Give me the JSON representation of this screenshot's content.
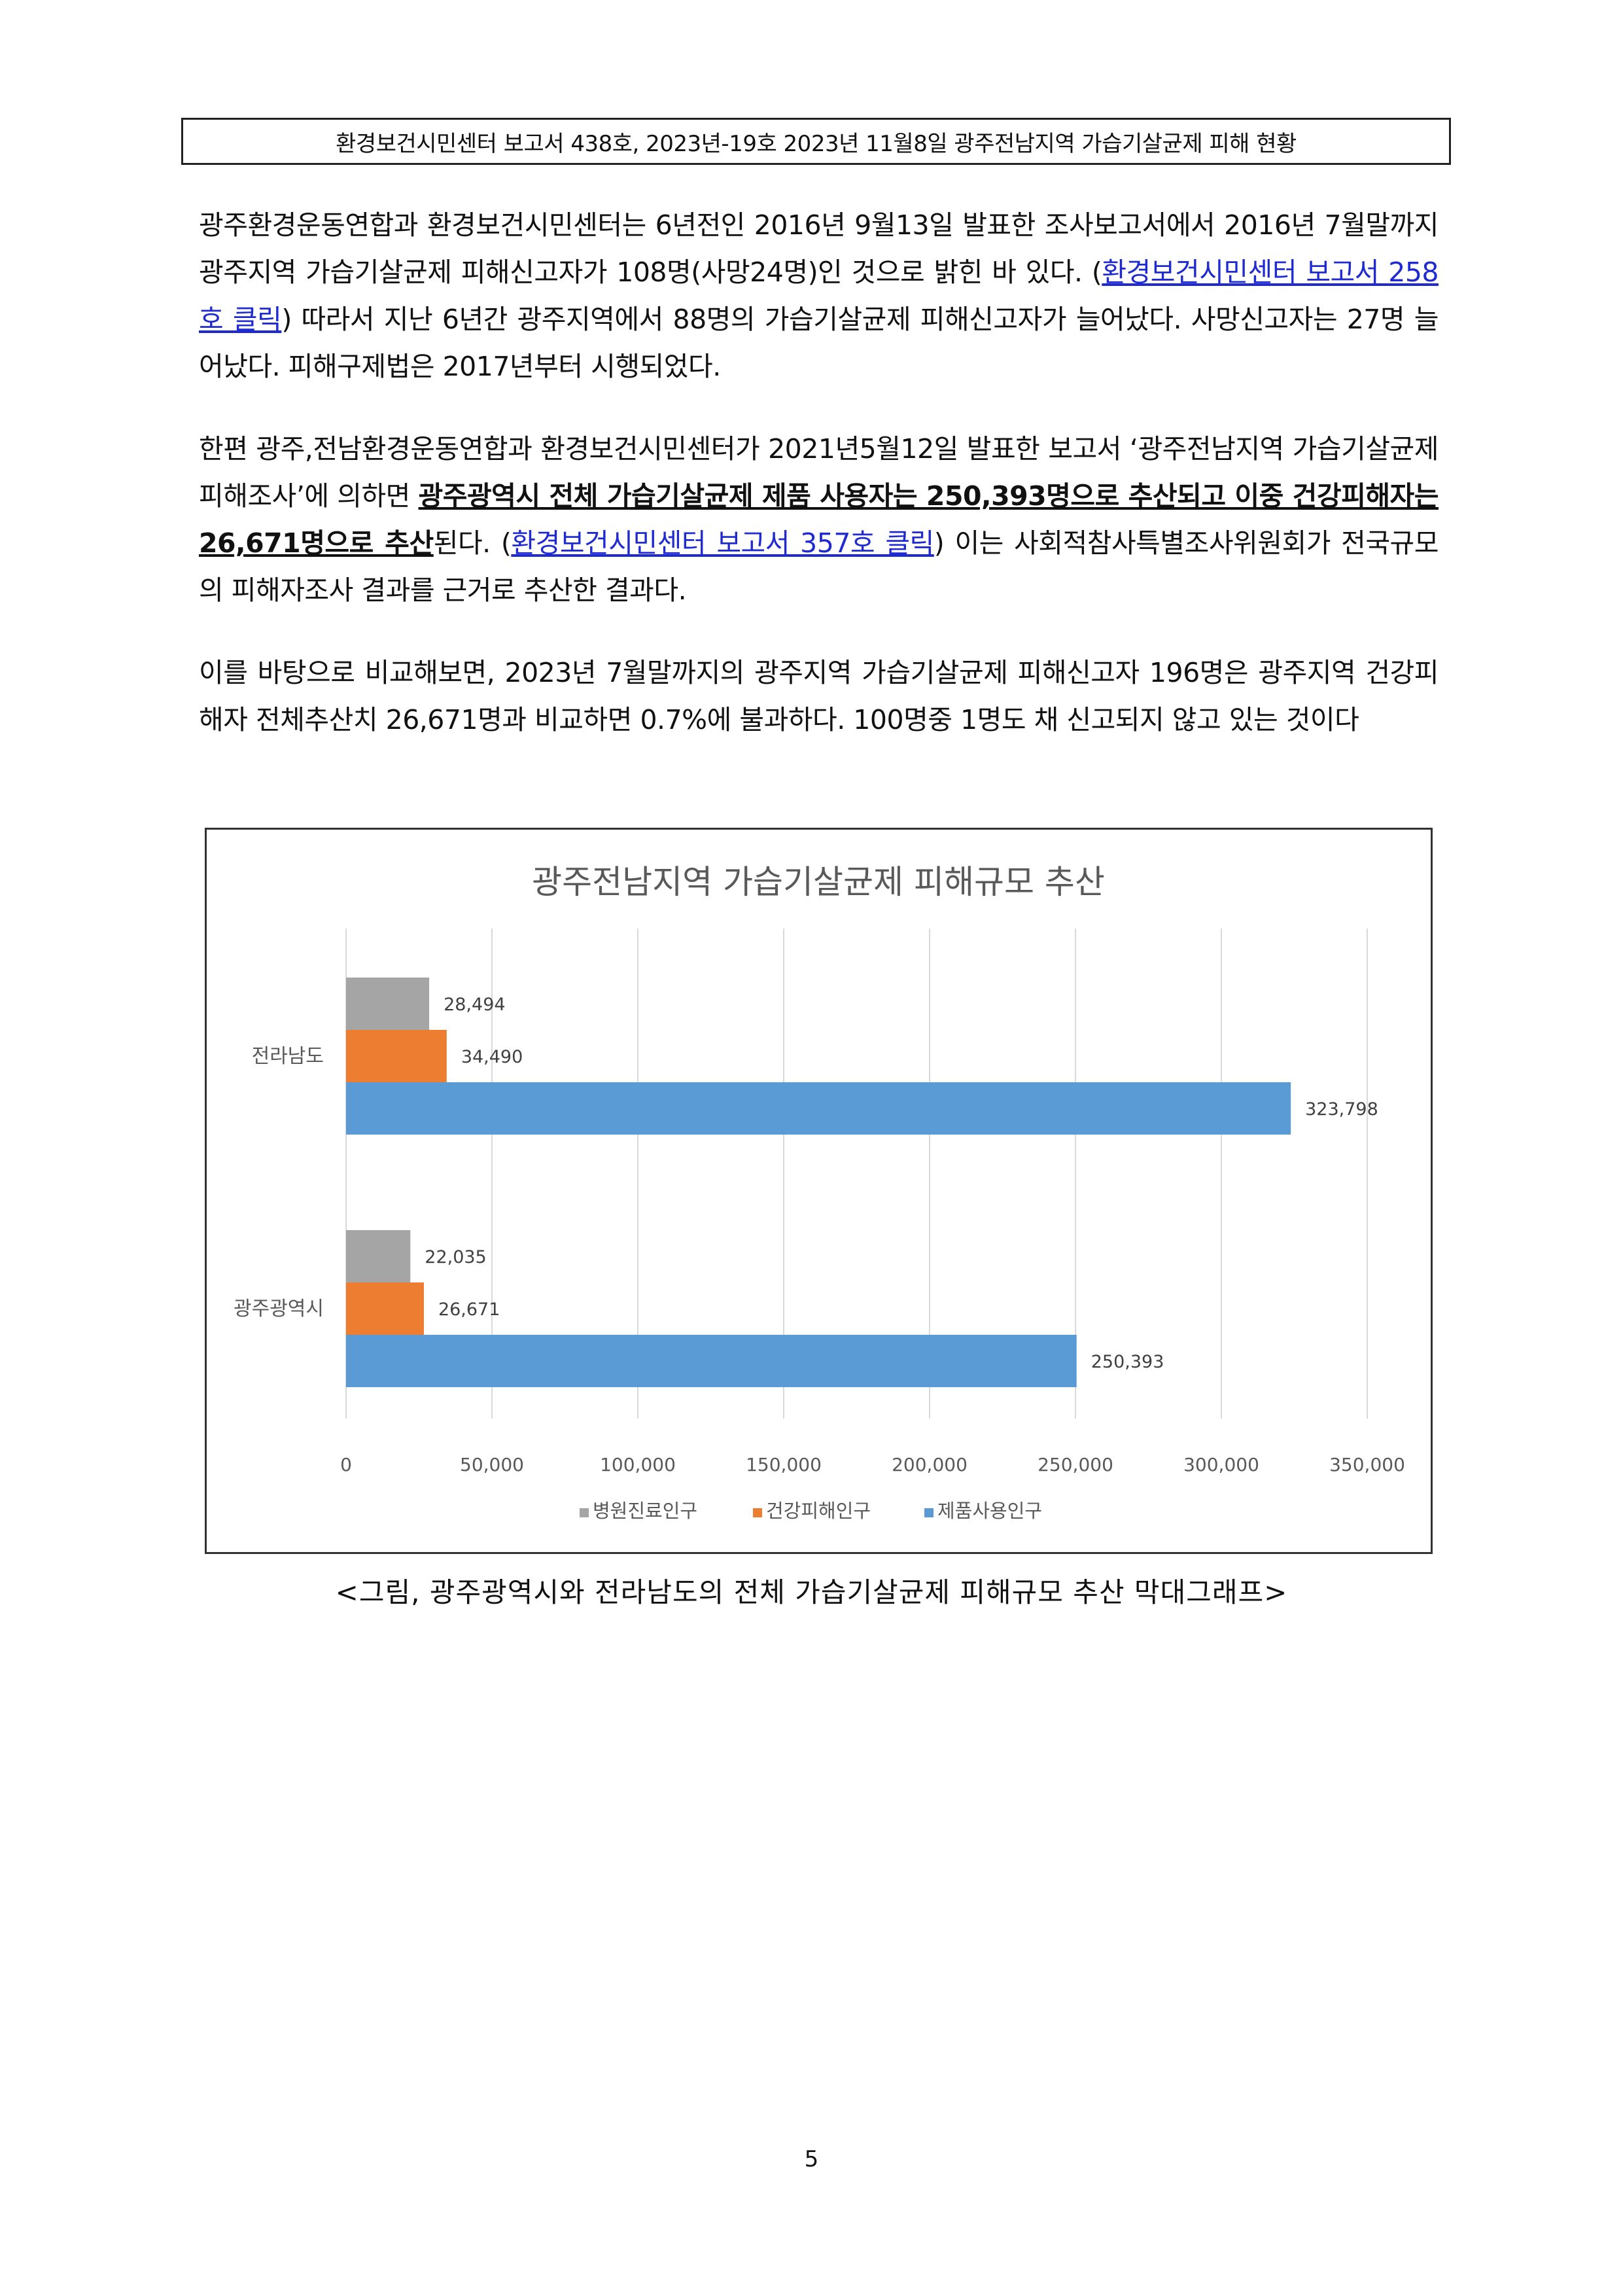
{
  "header": {
    "title": "환경보건시민센터 보고서 438호, 2023년-19호 2023년 11월8일 광주전남지역 가습기살균제 피해 현황"
  },
  "paragraphs": {
    "p1": {
      "text_a": "광주환경운동연합과 환경보건시민센터는 6년전인 2016년 9월13일 발표한 조사보고서에서 2016년 7월말까지 광주지역 가습기살균제 피해신고자가 108명(사망24명)인 것으로 밝힌 바 있다. (",
      "link": "환경보건시민센터 보고서 258호 클릭",
      "text_b": ") 따라서 지난 6년간 광주지역에서 88명의 가습기살균제 피해신고자가 늘어났다. 사망신고자는 27명 늘어났다. 피해구제법은 2017년부터 시행되었다."
    },
    "p2": {
      "text_a": "한편 광주,전남환경운동연합과 환경보건시민센터가 2021년5월12일 발표한 보고서 ‘광주전남지역 가습기살균제 피해조사’에 의하면 ",
      "emphasis": "광주광역시 전체 가습기살균제 제품 사용자는 250,393명으로 추산되고 이중 건강피해자는 26,671명으로 추산",
      "text_b": "된다. (",
      "link": "환경보건시민센터 보고서 357호 클릭",
      "text_c": ")  이는 사회적참사특별조사위원회가 전국규모의 피해자조사 결과를 근거로 추산한 결과다."
    },
    "p3": {
      "text": "이를 바탕으로 비교해보면, 2023년 7월말까지의 광주지역 가습기살균제 피해신고자 196명은 광주지역 건강피해자 전체추산치 26,671명과 비교하면 0.7%에 불과하다. 100명중 1명도 채 신고되지 않고 있는 것이다"
    }
  },
  "chart_data": {
    "type": "bar",
    "orientation": "horizontal",
    "title": "광주전남지역 가습기살균제 피해규모 추산",
    "categories": [
      "전라남도",
      "광주광역시"
    ],
    "series": [
      {
        "name": "병원진료인구",
        "values": [
          28494,
          22035
        ],
        "labels": [
          "28,494",
          "22,035"
        ],
        "color": "#a5a5a5"
      },
      {
        "name": "건강피해인구",
        "values": [
          34490,
          26671
        ],
        "labels": [
          "34,490",
          "26,671"
        ],
        "color": "#ed7d31"
      },
      {
        "name": "제품사용인구",
        "values": [
          323798,
          250393
        ],
        "labels": [
          "323,798",
          "250,393"
        ],
        "color": "#5b9bd5"
      }
    ],
    "xlim": [
      0,
      350000
    ],
    "xticks": [
      "0",
      "50,000",
      "100,000",
      "150,000",
      "200,000",
      "250,000",
      "300,000",
      "350,000"
    ],
    "grid": true,
    "legend": "bottom"
  },
  "caption": "<그림, 광주광역시와 전라남도의 전체 가습기살균제 피해규모 추산 막대그래프>",
  "page_number": "5"
}
